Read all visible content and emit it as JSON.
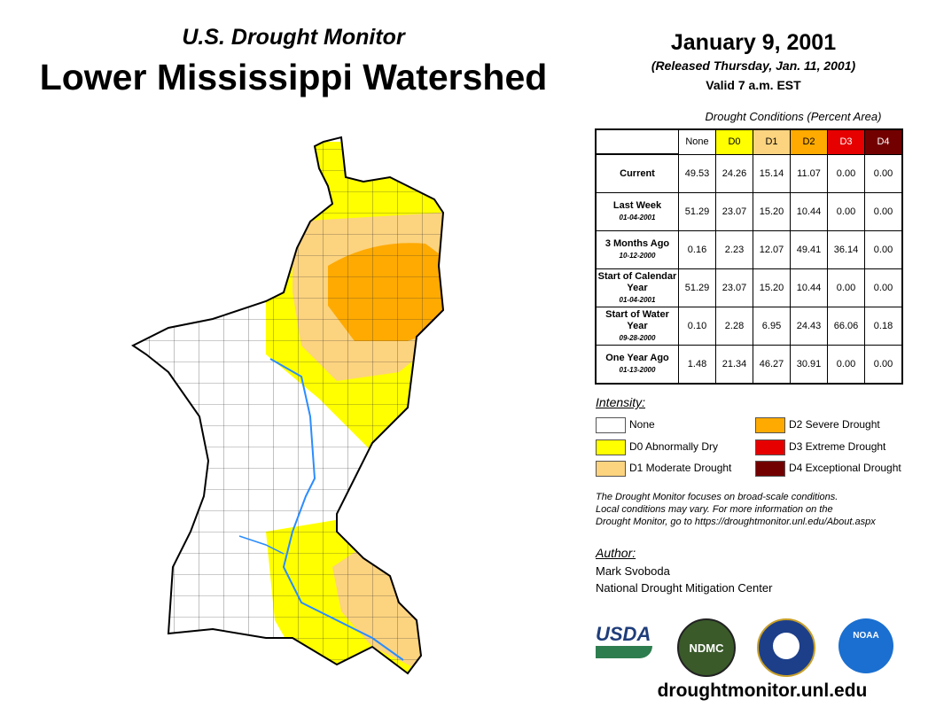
{
  "header": {
    "subtitle": "U.S. Drought Monitor",
    "title": "Lower Mississippi Watershed",
    "date": "January 9, 2001",
    "released": "(Released Thursday, Jan. 11, 2001)",
    "valid": "Valid 7 a.m. EST"
  },
  "table": {
    "caption": "Drought Conditions (Percent Area)",
    "columns": [
      "None",
      "D0",
      "D1",
      "D2",
      "D3",
      "D4"
    ],
    "column_colors": [
      "#ffffff",
      "#ffff00",
      "#fcd37f",
      "#ffaa00",
      "#e60000",
      "#730000"
    ],
    "rows": [
      {
        "label": "Current",
        "date": "",
        "values": [
          "49.53",
          "24.26",
          "15.14",
          "11.07",
          "0.00",
          "0.00"
        ]
      },
      {
        "label": "Last Week",
        "date": "01-04-2001",
        "values": [
          "51.29",
          "23.07",
          "15.20",
          "10.44",
          "0.00",
          "0.00"
        ]
      },
      {
        "label": "3 Months Ago",
        "date": "10-12-2000",
        "values": [
          "0.16",
          "2.23",
          "12.07",
          "49.41",
          "36.14",
          "0.00"
        ]
      },
      {
        "label": "Start of Calendar Year",
        "date": "01-04-2001",
        "values": [
          "51.29",
          "23.07",
          "15.20",
          "10.44",
          "0.00",
          "0.00"
        ]
      },
      {
        "label": "Start of Water Year",
        "date": "09-28-2000",
        "values": [
          "0.10",
          "2.28",
          "6.95",
          "24.43",
          "66.06",
          "0.18"
        ]
      },
      {
        "label": "One Year Ago",
        "date": "01-13-2000",
        "values": [
          "1.48",
          "21.34",
          "46.27",
          "30.91",
          "0.00",
          "0.00"
        ]
      }
    ]
  },
  "legend": {
    "title": "Intensity:",
    "items": [
      {
        "label": "None",
        "color": "#ffffff"
      },
      {
        "label": "D0 Abnormally Dry",
        "color": "#ffff00"
      },
      {
        "label": "D1 Moderate Drought",
        "color": "#fcd37f"
      },
      {
        "label": "D2 Severe Drought",
        "color": "#ffaa00"
      },
      {
        "label": "D3 Extreme Drought",
        "color": "#e60000"
      },
      {
        "label": "D4 Exceptional Drought",
        "color": "#730000"
      }
    ]
  },
  "note": [
    "The Drought Monitor focuses on broad-scale conditions.",
    "Local conditions may vary. For more information on the",
    "Drought Monitor, go to https://droughtmonitor.unl.edu/About.aspx"
  ],
  "author": {
    "title": "Author:",
    "name": "Mark Svoboda",
    "org": "National Drought Mitigation Center"
  },
  "logos": [
    "USDA",
    "NDMC",
    "NOAA"
  ],
  "url": "droughtmonitor.unl.edu"
}
